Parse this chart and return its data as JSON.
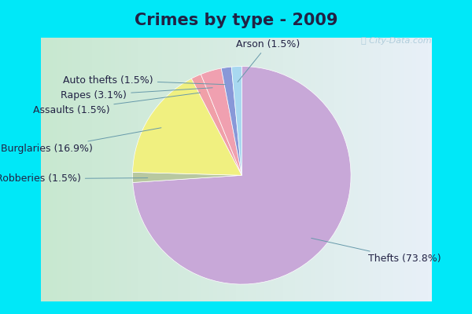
{
  "title": "Crimes by type - 2009",
  "slices": [
    {
      "name": "Thefts",
      "pct": 73.8,
      "color": "#c8a8d8"
    },
    {
      "name": "Burglaries",
      "pct": 16.9,
      "color": "#f0f080"
    },
    {
      "name": "Robberies",
      "pct": 1.5,
      "color": "#b8c8a0"
    },
    {
      "name": "Assaults",
      "pct": 1.5,
      "color": "#f0a0a8"
    },
    {
      "name": "Rapes",
      "pct": 3.1,
      "color": "#f0a0a8"
    },
    {
      "name": "Auto thefts",
      "pct": 1.5,
      "color": "#8898d8"
    },
    {
      "name": "Arson",
      "pct": 1.5,
      "color": "#a8d8f0"
    }
  ],
  "cyan_color": "#00e8f8",
  "chart_bg_left": "#c8e8d0",
  "chart_bg_right": "#e8f0f8",
  "title_fontsize": 15,
  "label_fontsize": 9,
  "title_color": "#222244",
  "watermark_color": "#a8c8d8"
}
